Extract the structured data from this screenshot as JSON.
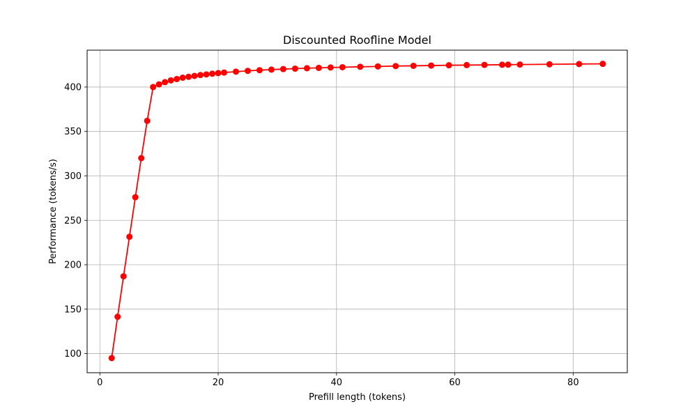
{
  "chart_data": {
    "type": "line",
    "title": "Discounted Roofline Model",
    "xlabel": "Prefill length (tokens)",
    "ylabel": "Performance (tokens/s)",
    "xlim": [
      -2.15,
      89.15
    ],
    "ylim": [
      78.5,
      441.5
    ],
    "xticks": [
      0,
      20,
      40,
      60,
      80
    ],
    "yticks": [
      100,
      150,
      200,
      250,
      300,
      350,
      400
    ],
    "grid": true,
    "color": "#ff0000",
    "series": [
      {
        "x": [
          2,
          3,
          4,
          5,
          6,
          7,
          8,
          9,
          10,
          11,
          12,
          13,
          14,
          15,
          16,
          17,
          18,
          19,
          20,
          21,
          23,
          25,
          27,
          29,
          31,
          33,
          35,
          37,
          39,
          41,
          44,
          47,
          50,
          53,
          56,
          59,
          62,
          65,
          68,
          69,
          71,
          76,
          81,
          85
        ],
        "y": [
          95,
          141.5,
          187,
          231.5,
          276,
          320,
          362,
          400,
          403,
          405.5,
          407.5,
          409,
          410.5,
          411.5,
          412.5,
          413.5,
          414.2,
          415,
          415.7,
          416.3,
          417.3,
          418.2,
          419,
          419.6,
          420.2,
          420.7,
          421.2,
          421.6,
          422,
          422.3,
          422.8,
          423.2,
          423.6,
          423.9,
          424.2,
          424.5,
          424.7,
          424.9,
          425.1,
          425.2,
          425.3,
          425.6,
          425.9,
          426.1
        ]
      }
    ]
  }
}
